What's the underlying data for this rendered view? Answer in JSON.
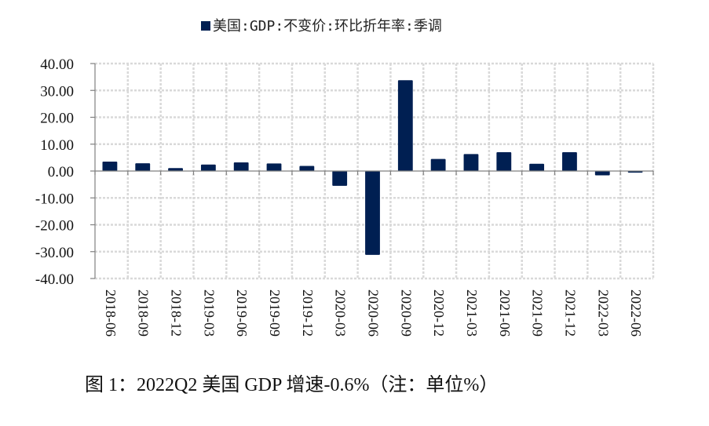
{
  "chart_data": {
    "type": "bar",
    "title": "",
    "legend": [
      {
        "name": "美国:GDP:不变价:环比折年率:季调",
        "color": "#001f52"
      }
    ],
    "legend_position": "top-center",
    "categories": [
      "2018-06",
      "2018-09",
      "2018-12",
      "2019-03",
      "2019-06",
      "2019-09",
      "2019-12",
      "2020-03",
      "2020-06",
      "2020-09",
      "2020-12",
      "2021-03",
      "2021-06",
      "2021-09",
      "2021-12",
      "2022-03",
      "2022-06"
    ],
    "series": [
      {
        "name": "美国:GDP:不变价:环比折年率:季调",
        "values": [
          3.5,
          2.9,
          1.1,
          2.4,
          3.2,
          2.8,
          1.9,
          -5.5,
          -31.2,
          33.8,
          4.5,
          6.3,
          7.0,
          2.7,
          7.0,
          -1.6,
          -0.6
        ]
      }
    ],
    "xlabel": "",
    "ylabel": "",
    "ylim": [
      -40,
      40
    ],
    "yticks": [
      40,
      30,
      20,
      10,
      0,
      -10,
      -20,
      -30,
      -40
    ],
    "ytick_labels": [
      "40.00",
      "30.00",
      "20.00",
      "10.00",
      "0.00",
      "-10.00",
      "-20.00",
      "-30.00",
      "-40.00"
    ],
    "grid": true,
    "bar_color": "#001f52",
    "caption": "图 1：2022Q2 美国 GDP 增速-0.6%（注：单位%）"
  }
}
